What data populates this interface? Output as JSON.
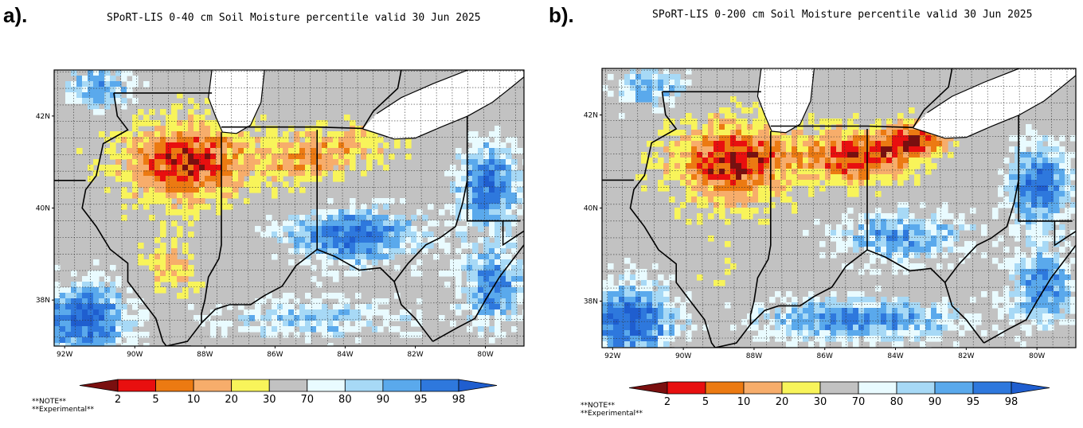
{
  "panels": [
    {
      "id": "a",
      "label": "a).",
      "title": "SPoRT-LIS 0-40 cm Soil Moisture percentile valid 30 Jun 2025",
      "lat_labels": [
        "42N",
        "40N",
        "38N"
      ],
      "lon_labels": [
        "92W",
        "90W",
        "88W",
        "86W",
        "84W",
        "82W",
        "80W"
      ],
      "colorbar_ticks": [
        "2",
        "5",
        "10",
        "20",
        "30",
        "70",
        "80",
        "90",
        "95",
        "98"
      ],
      "note_lines": [
        "**NOTE**",
        "**Experimental**"
      ]
    },
    {
      "id": "b",
      "label": "b).",
      "title": "SPoRT-LIS 0-200 cm Soil Moisture percentile valid 30 Jun 2025",
      "lat_labels": [
        "42N",
        "40N",
        "38N"
      ],
      "lon_labels": [
        "92W",
        "90W",
        "88W",
        "86W",
        "84W",
        "82W",
        "80W"
      ],
      "colorbar_ticks": [
        "2",
        "5",
        "10",
        "20",
        "30",
        "70",
        "80",
        "90",
        "95",
        "98"
      ],
      "note_lines": [
        "**NOTE**",
        "**Experimental**"
      ]
    }
  ],
  "map_extent": {
    "lon_min": -92.3,
    "lon_max": -78.9,
    "lat_min": 37.0,
    "lat_max": 43.0
  },
  "colorbar_colors": [
    "#7a0f0f",
    "#e80f0f",
    "#ec7a12",
    "#f7ad6b",
    "#f8f45a",
    "#c2c2c2",
    "#e9fbff",
    "#a7d9f6",
    "#5aa9ec",
    "#2e78dd",
    "#1f5ecf"
  ]
}
